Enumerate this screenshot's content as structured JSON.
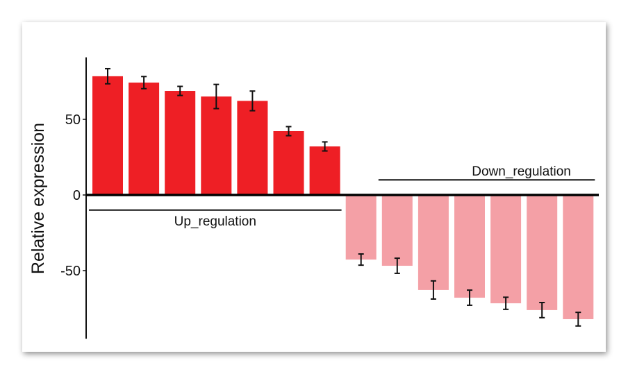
{
  "chart_data": {
    "type": "bar",
    "title": "",
    "xlabel": "",
    "ylabel": "Relative expression",
    "ylim": [
      -95,
      91
    ],
    "yticks": [
      -50,
      0,
      50
    ],
    "grid": false,
    "colors": {
      "up": "#ee1f25",
      "down": "#f4a0a6"
    },
    "series": [
      {
        "group": "up",
        "values": [
          78.5,
          74.3,
          68.8,
          65.1,
          62.2,
          42.2,
          32.1
        ],
        "errors": [
          5,
          4,
          3,
          8,
          6.5,
          3,
          3
        ]
      },
      {
        "group": "down",
        "values": [
          -42.7,
          -46.8,
          -62.8,
          -67.9,
          -71.6,
          -76.1,
          -82.1
        ],
        "errors": [
          3.7,
          5,
          6,
          5,
          4,
          5,
          4.5
        ]
      }
    ],
    "annotations": [
      {
        "label": "Up_regulation",
        "from_bar": 1,
        "to_bar": 7,
        "y": -10
      },
      {
        "label": "Down_regulation",
        "from_bar": 9,
        "to_bar": 14,
        "y": 10
      }
    ]
  }
}
